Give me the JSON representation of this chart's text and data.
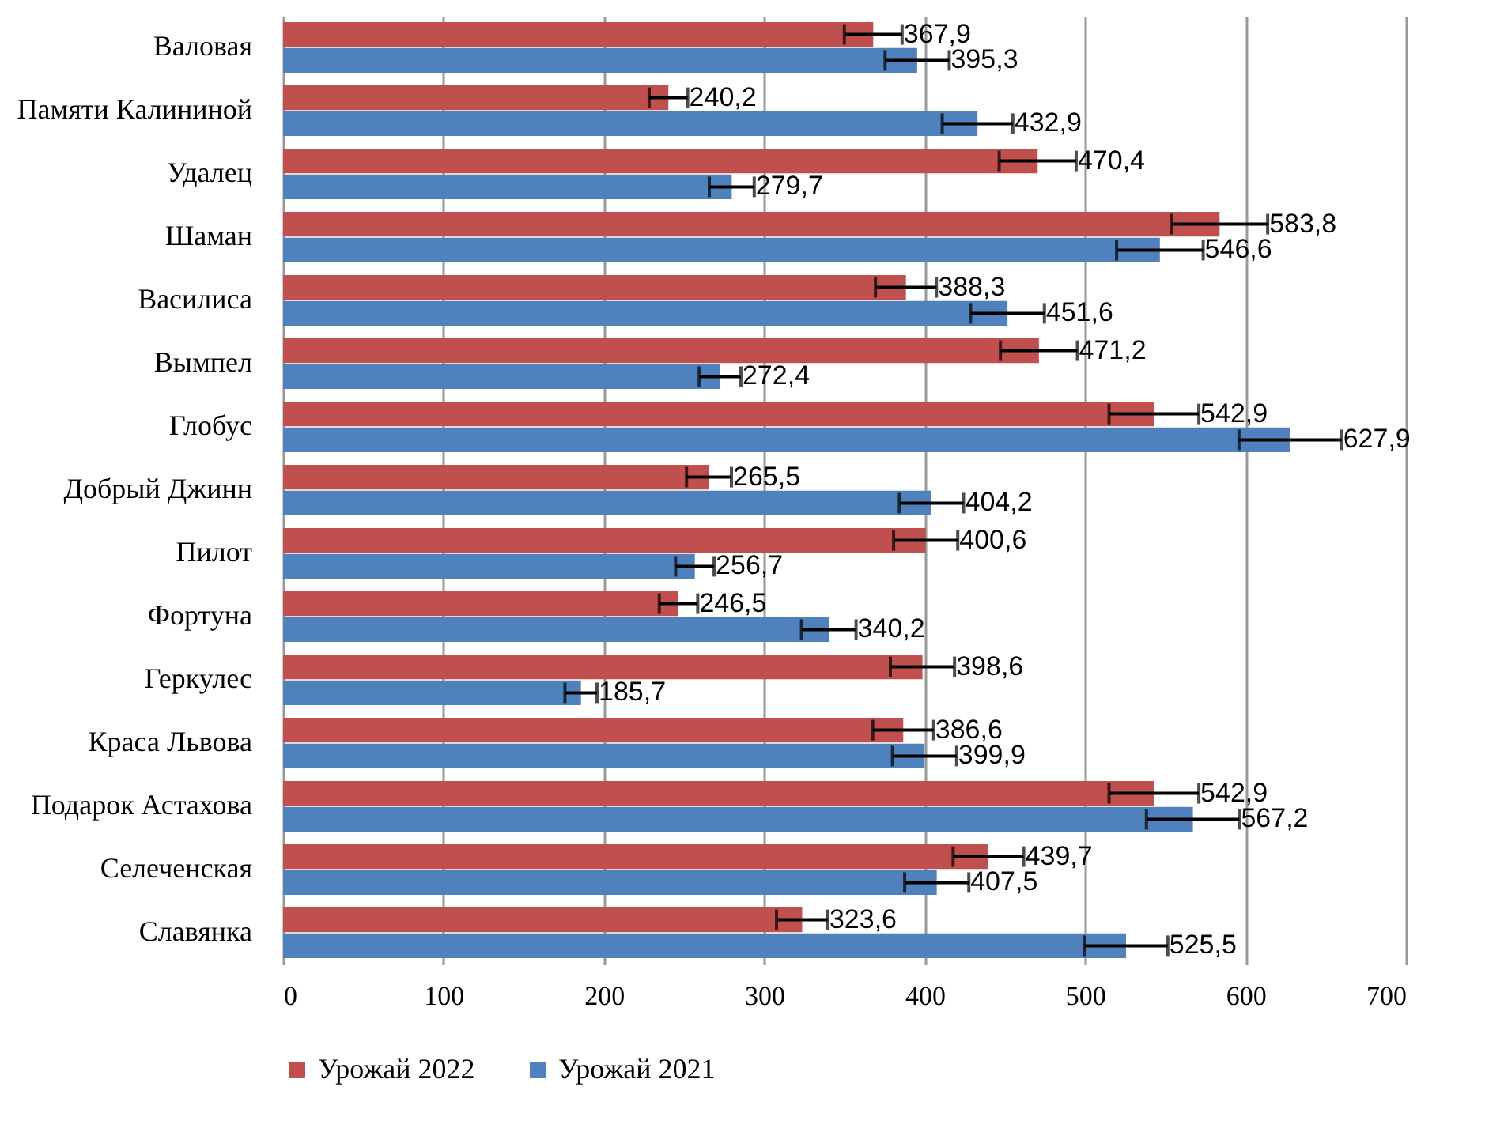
{
  "chart_data": {
    "type": "bar",
    "orientation": "horizontal",
    "categories": [
      "Валовая",
      "Памяти Калининой",
      "Удалец",
      "Шаман",
      "Василиса",
      "Вымпел",
      "Глобус",
      "Добрый Джинн",
      "Пилот",
      "Фортуна",
      "Геркулес",
      "Краса Львова",
      "Подарок Астахова",
      "Селеченская",
      "Славянка"
    ],
    "series": [
      {
        "name": "Урожай 2022",
        "color": "#c0504d",
        "values": [
          367.9,
          240.2,
          470.4,
          583.8,
          388.3,
          471.2,
          542.9,
          265.5,
          400.6,
          246.5,
          398.6,
          386.6,
          542.9,
          439.7,
          323.6
        ],
        "errors": [
          18,
          12,
          24,
          30,
          19,
          24,
          28,
          14,
          20,
          12,
          20,
          19,
          28,
          22,
          16
        ],
        "value_labels": [
          "367,9",
          "240,2",
          "470,4",
          "583,8",
          "388,3",
          "471,2",
          "542,9",
          "265,5",
          "400,6",
          "246,5",
          "398,6",
          "386,6",
          "542,9",
          "439,7",
          "323,6"
        ]
      },
      {
        "name": "Урожай 2021",
        "color": "#4f81bd",
        "values": [
          395.3,
          432.9,
          279.7,
          546.6,
          451.6,
          272.4,
          627.9,
          404.2,
          256.7,
          340.2,
          185.7,
          399.9,
          567.2,
          407.5,
          525.5
        ],
        "errors": [
          20,
          22,
          14,
          27,
          23,
          13,
          32,
          20,
          12,
          17,
          10,
          20,
          29,
          20,
          26
        ],
        "value_labels": [
          "395,3",
          "432,9",
          "279,7",
          "546,6",
          "451,6",
          "272,4",
          "627,9",
          "404,2",
          "256,7",
          "340,2",
          "185,7",
          "399,9",
          "567,2",
          "407,5",
          "525,5"
        ]
      }
    ],
    "xlim": [
      0,
      700
    ],
    "xticks": [
      0,
      100,
      200,
      300,
      400,
      500,
      600,
      700
    ],
    "grid": "x",
    "legend": "bottom"
  }
}
